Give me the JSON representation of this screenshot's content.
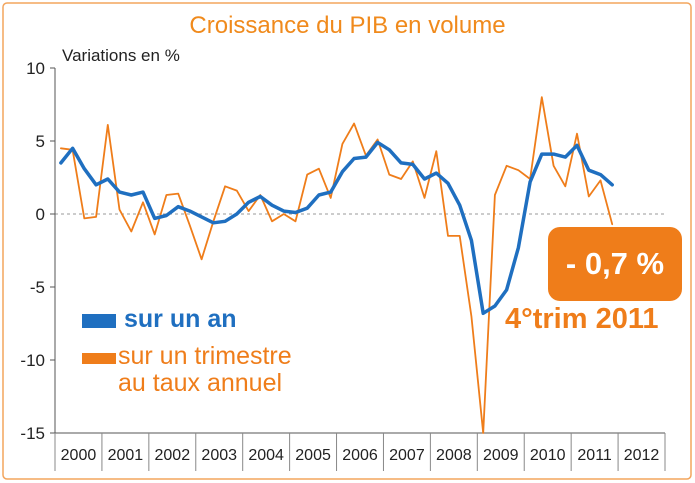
{
  "title": "Croissance du PIB en volume",
  "ylabel": "Variations en %",
  "colors": {
    "annual": "#1f6fc0",
    "quarterly": "#ef7d1a",
    "title": "#f08a1c"
  },
  "callout": {
    "value": "- 0,7 %",
    "label": "4°trim 2011"
  },
  "legend": {
    "annual": "sur un an",
    "quarterly_line1": "sur un trimestre",
    "quarterly_line2": "au taux annuel"
  },
  "chart_data": {
    "type": "line",
    "title": "Croissance du PIB en volume",
    "ylabel": "Variations en %",
    "xlabel": "",
    "ylim": [
      -15,
      10
    ],
    "yticks": [
      10,
      5,
      0,
      -5,
      -10,
      -15
    ],
    "x_axis_years": [
      "2000",
      "2001",
      "2002",
      "2003",
      "2004",
      "2005",
      "2006",
      "2007",
      "2008",
      "2009",
      "2010",
      "2011",
      "2012"
    ],
    "x_quarters": [
      "2000T1",
      "2000T2",
      "2000T3",
      "2000T4",
      "2001T1",
      "2001T2",
      "2001T3",
      "2001T4",
      "2002T1",
      "2002T2",
      "2002T3",
      "2002T4",
      "2003T1",
      "2003T2",
      "2003T3",
      "2003T4",
      "2004T1",
      "2004T2",
      "2004T3",
      "2004T4",
      "2005T1",
      "2005T2",
      "2005T3",
      "2005T4",
      "2006T1",
      "2006T2",
      "2006T3",
      "2006T4",
      "2007T1",
      "2007T2",
      "2007T3",
      "2007T4",
      "2008T1",
      "2008T2",
      "2008T3",
      "2008T4",
      "2009T1",
      "2009T2",
      "2009T3",
      "2009T4",
      "2010T1",
      "2010T2",
      "2010T3",
      "2010T4",
      "2011T1",
      "2011T2",
      "2011T3",
      "2011T4"
    ],
    "series": [
      {
        "name": "sur un an",
        "color": "#1f6fc0",
        "values": [
          3.5,
          4.5,
          3.1,
          2.0,
          2.4,
          1.5,
          1.3,
          1.5,
          -0.3,
          -0.1,
          0.5,
          0.2,
          -0.2,
          -0.6,
          -0.5,
          0.0,
          0.8,
          1.2,
          0.6,
          0.2,
          0.1,
          0.4,
          1.3,
          1.5,
          2.9,
          3.8,
          3.9,
          4.9,
          4.4,
          3.5,
          3.4,
          2.4,
          2.8,
          2.1,
          0.6,
          -1.8,
          -6.8,
          -6.3,
          -5.2,
          -2.3,
          2.2,
          4.1,
          4.1,
          3.9,
          4.7,
          3.0,
          2.7,
          2.0
        ]
      },
      {
        "name": "sur un trimestre au taux annuel",
        "color": "#ef7d1a",
        "values": [
          4.5,
          4.4,
          -0.3,
          -0.2,
          6.1,
          0.3,
          -1.2,
          0.8,
          -1.4,
          1.3,
          1.4,
          -0.8,
          -3.1,
          -0.5,
          1.9,
          1.6,
          0.2,
          1.3,
          -0.5,
          0.0,
          -0.5,
          2.7,
          3.1,
          1.1,
          4.8,
          6.2,
          4.0,
          5.1,
          2.7,
          2.4,
          3.6,
          1.1,
          4.3,
          -1.5,
          -1.5,
          -7.0,
          -15.0,
          1.3,
          3.3,
          3.0,
          2.4,
          8.0,
          3.3,
          1.9,
          5.5,
          1.2,
          2.3,
          -0.7
        ]
      }
    ]
  }
}
